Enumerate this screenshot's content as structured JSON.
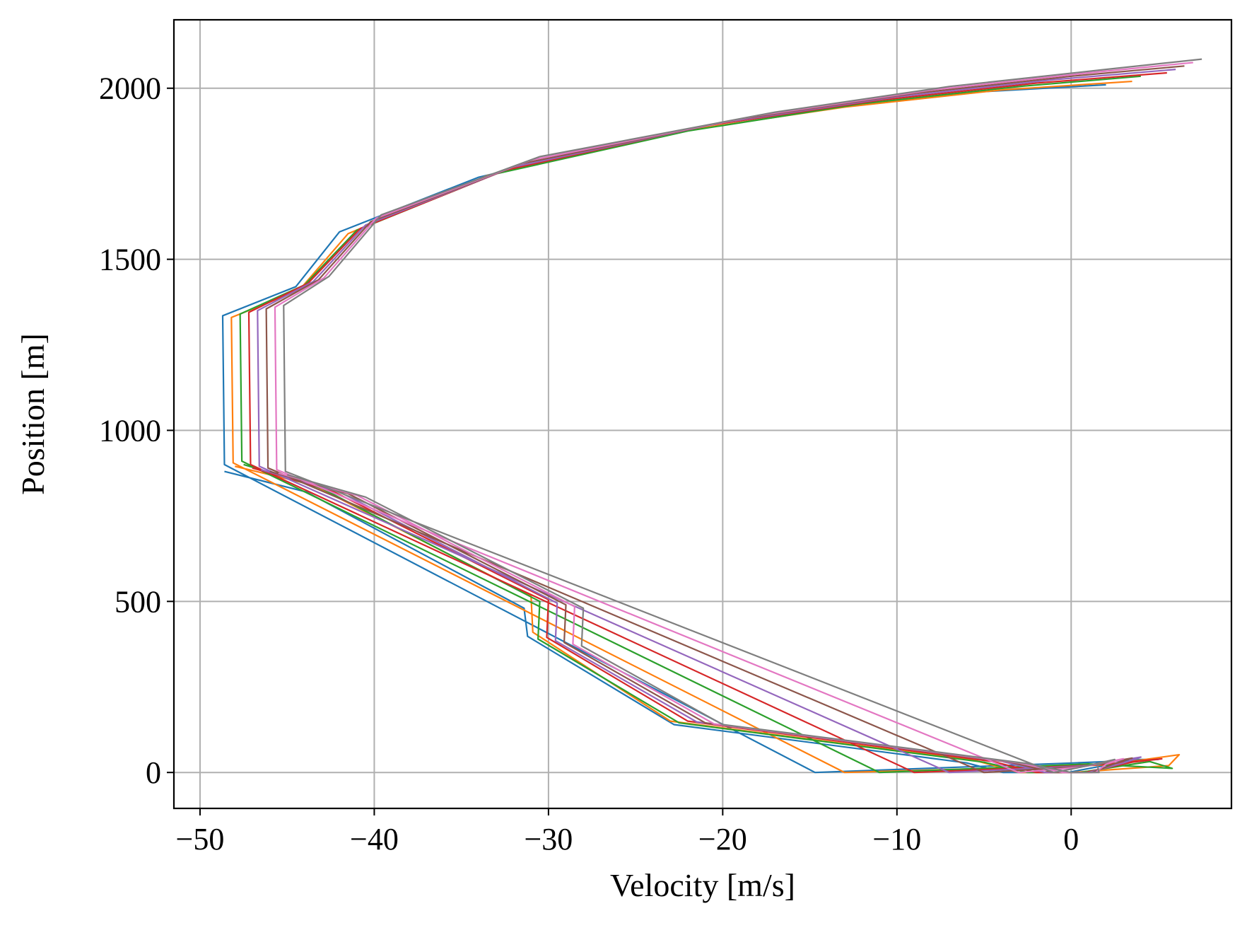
{
  "chart_data": {
    "type": "line",
    "title": "",
    "xlabel": "Velocity [m/s]",
    "ylabel": "Position [m]",
    "xlim": [
      -51.5,
      9.2
    ],
    "ylim": [
      -105,
      2200
    ],
    "xticks": [
      -50,
      -40,
      -30,
      -20,
      -10,
      0
    ],
    "xtick_labels": [
      "−50",
      "−40",
      "−30",
      "−20",
      "−10",
      "0"
    ],
    "yticks": [
      0,
      500,
      1000,
      1500,
      2000
    ],
    "ytick_labels": [
      "0",
      "500",
      "1000",
      "1500",
      "2000"
    ],
    "grid": true,
    "legend": "none",
    "colors": [
      "#1f77b4",
      "#ff7f0e",
      "#2ca02c",
      "#d62728",
      "#9467bd",
      "#8c564b",
      "#e377c2",
      "#7f7f7f",
      "#bcbd22",
      "#17becf"
    ],
    "marker_colors": {
      "green": "#008000",
      "red": "#ff0000"
    },
    "series": [
      {
        "values": [
          [
            -48.6,
            880
          ],
          [
            -43.9,
            820
          ],
          [
            -31.4,
            480
          ],
          [
            -31.2,
            398
          ],
          [
            -22.8,
            140
          ],
          [
            -6.0,
            28
          ],
          [
            -3.9,
            0
          ],
          [
            -0.2,
            0
          ],
          [
            3.8,
            38
          ],
          [
            5.0,
            38
          ],
          [
            0.2,
            28
          ],
          [
            -14.7,
            0
          ],
          [
            -48.6,
            900
          ],
          [
            -48.7,
            1335
          ],
          [
            -44.5,
            1420
          ],
          [
            -42.0,
            1580
          ],
          [
            -34.0,
            1740
          ],
          [
            -24.0,
            1860
          ],
          [
            -14.0,
            1940
          ],
          [
            -5.0,
            1990
          ],
          [
            2.0,
            2010
          ]
        ]
      },
      {
        "values": [
          [
            -48.0,
            895
          ],
          [
            -43.5,
            840
          ],
          [
            -31.0,
            515
          ],
          [
            -30.9,
            410
          ],
          [
            -23.0,
            150
          ],
          [
            -5.5,
            35
          ],
          [
            -3.0,
            0
          ],
          [
            0.0,
            0
          ],
          [
            5.6,
            20
          ],
          [
            6.2,
            52
          ],
          [
            2.0,
            22
          ],
          [
            -13.0,
            0
          ],
          [
            -48.1,
            905
          ],
          [
            -48.2,
            1330
          ],
          [
            -44.3,
            1410
          ],
          [
            -41.5,
            1575
          ],
          [
            -33.5,
            1745
          ],
          [
            -23.0,
            1870
          ],
          [
            -13.0,
            1945
          ],
          [
            -4.0,
            1995
          ],
          [
            3.5,
            2020
          ]
        ]
      },
      {
        "values": [
          [
            -47.5,
            900
          ],
          [
            -43.0,
            830
          ],
          [
            -30.5,
            500
          ],
          [
            -30.6,
            390
          ],
          [
            -22.5,
            145
          ],
          [
            -5.0,
            30
          ],
          [
            -2.5,
            0
          ],
          [
            0.5,
            0
          ],
          [
            4.5,
            32
          ],
          [
            5.8,
            12
          ],
          [
            1.0,
            25
          ],
          [
            -11.0,
            0
          ],
          [
            -47.6,
            910
          ],
          [
            -47.7,
            1340
          ],
          [
            -44.0,
            1425
          ],
          [
            -41.0,
            1585
          ],
          [
            -33.0,
            1750
          ],
          [
            -22.0,
            1875
          ],
          [
            -12.0,
            1955
          ],
          [
            -3.0,
            2005
          ],
          [
            4.0,
            2035
          ]
        ]
      },
      {
        "values": [
          [
            -47.0,
            890
          ],
          [
            -42.5,
            825
          ],
          [
            -30.0,
            505
          ],
          [
            -30.1,
            395
          ],
          [
            -22.0,
            150
          ],
          [
            -4.5,
            32
          ],
          [
            -2.0,
            0
          ],
          [
            0.8,
            0
          ],
          [
            3.5,
            30
          ],
          [
            5.2,
            40
          ],
          [
            1.5,
            22
          ],
          [
            -9.0,
            0
          ],
          [
            -47.1,
            900
          ],
          [
            -47.2,
            1345
          ],
          [
            -43.8,
            1430
          ],
          [
            -40.8,
            1590
          ],
          [
            -32.5,
            1760
          ],
          [
            -21.0,
            1890
          ],
          [
            -11.0,
            1965
          ],
          [
            -2.0,
            2015
          ],
          [
            5.5,
            2045
          ]
        ]
      },
      {
        "values": [
          [
            -46.5,
            885
          ],
          [
            -42.0,
            820
          ],
          [
            -29.5,
            495
          ],
          [
            -29.6,
            385
          ],
          [
            -21.5,
            148
          ],
          [
            -4.0,
            33
          ],
          [
            -1.5,
            0
          ],
          [
            1.0,
            0
          ],
          [
            3.0,
            28
          ],
          [
            4.0,
            45
          ],
          [
            1.0,
            20
          ],
          [
            -7.0,
            0
          ],
          [
            -46.6,
            895
          ],
          [
            -46.7,
            1350
          ],
          [
            -43.5,
            1435
          ],
          [
            -40.5,
            1600
          ],
          [
            -32.0,
            1770
          ],
          [
            -20.0,
            1900
          ],
          [
            -10.0,
            1975
          ],
          [
            -1.0,
            2025
          ],
          [
            6.0,
            2055
          ]
        ]
      },
      {
        "values": [
          [
            -46.0,
            880
          ],
          [
            -41.5,
            815
          ],
          [
            -29.0,
            490
          ],
          [
            -29.1,
            380
          ],
          [
            -21.0,
            145
          ],
          [
            -3.5,
            30
          ],
          [
            -1.0,
            0
          ],
          [
            1.2,
            0
          ],
          [
            2.5,
            26
          ],
          [
            3.5,
            42
          ],
          [
            0.8,
            18
          ],
          [
            -5.0,
            0
          ],
          [
            -46.1,
            890
          ],
          [
            -46.2,
            1355
          ],
          [
            -43.2,
            1440
          ],
          [
            -40.2,
            1610
          ],
          [
            -31.5,
            1780
          ],
          [
            -19.0,
            1910
          ],
          [
            -9.0,
            1985
          ],
          [
            0.0,
            2035
          ],
          [
            6.5,
            2065
          ]
        ]
      },
      {
        "values": [
          [
            -45.5,
            875
          ],
          [
            -41.0,
            810
          ],
          [
            -28.5,
            485
          ],
          [
            -28.6,
            375
          ],
          [
            -20.5,
            142
          ],
          [
            -3.0,
            28
          ],
          [
            -0.5,
            0
          ],
          [
            1.4,
            0
          ],
          [
            2.0,
            24
          ],
          [
            3.0,
            40
          ],
          [
            0.6,
            16
          ],
          [
            -3.0,
            0
          ],
          [
            -45.6,
            885
          ],
          [
            -45.7,
            1360
          ],
          [
            -42.9,
            1445
          ],
          [
            -39.9,
            1620
          ],
          [
            -31.0,
            1790
          ],
          [
            -18.0,
            1920
          ],
          [
            -8.0,
            1995
          ],
          [
            1.0,
            2045
          ],
          [
            7.0,
            2075
          ]
        ]
      },
      {
        "values": [
          [
            -45.0,
            870
          ],
          [
            -40.5,
            805
          ],
          [
            -28.0,
            480
          ],
          [
            -28.1,
            370
          ],
          [
            -20.0,
            140
          ],
          [
            -2.5,
            26
          ],
          [
            0.0,
            0
          ],
          [
            1.6,
            0
          ],
          [
            1.5,
            22
          ],
          [
            2.5,
            38
          ],
          [
            0.4,
            14
          ],
          [
            -1.0,
            0
          ],
          [
            -45.1,
            880
          ],
          [
            -45.2,
            1365
          ],
          [
            -42.6,
            1450
          ],
          [
            -39.6,
            1630
          ],
          [
            -30.5,
            1800
          ],
          [
            -17.0,
            1930
          ],
          [
            -7.0,
            2005
          ],
          [
            2.0,
            2055
          ],
          [
            7.5,
            2085
          ]
        ]
      }
    ]
  }
}
